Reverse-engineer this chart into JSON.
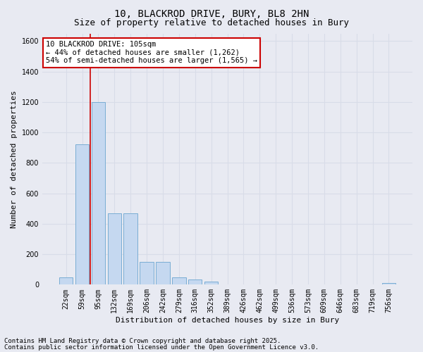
{
  "title_line1": "10, BLACKROD DRIVE, BURY, BL8 2HN",
  "title_line2": "Size of property relative to detached houses in Bury",
  "xlabel": "Distribution of detached houses by size in Bury",
  "ylabel": "Number of detached properties",
  "background_color": "#e8eaf2",
  "bar_color": "#c5d8f0",
  "bar_edge_color": "#7aadd4",
  "categories": [
    "22sqm",
    "59sqm",
    "95sqm",
    "132sqm",
    "169sqm",
    "206sqm",
    "242sqm",
    "279sqm",
    "316sqm",
    "352sqm",
    "389sqm",
    "426sqm",
    "462sqm",
    "499sqm",
    "536sqm",
    "573sqm",
    "609sqm",
    "646sqm",
    "683sqm",
    "719sqm",
    "756sqm"
  ],
  "values": [
    50,
    920,
    1200,
    470,
    470,
    150,
    150,
    50,
    35,
    20,
    0,
    0,
    0,
    0,
    0,
    0,
    0,
    0,
    0,
    0,
    10
  ],
  "ylim": [
    0,
    1650
  ],
  "yticks": [
    0,
    200,
    400,
    600,
    800,
    1000,
    1200,
    1400,
    1600
  ],
  "annotation_text": "10 BLACKROD DRIVE: 105sqm\n← 44% of detached houses are smaller (1,262)\n54% of semi-detached houses are larger (1,565) →",
  "vline_x": 1.5,
  "footer_line1": "Contains HM Land Registry data © Crown copyright and database right 2025.",
  "footer_line2": "Contains public sector information licensed under the Open Government Licence v3.0.",
  "grid_color": "#d8dce8",
  "title_fontsize": 10,
  "subtitle_fontsize": 9,
  "axis_label_fontsize": 8,
  "tick_fontsize": 7,
  "annotation_fontsize": 7.5,
  "footer_fontsize": 6.5
}
